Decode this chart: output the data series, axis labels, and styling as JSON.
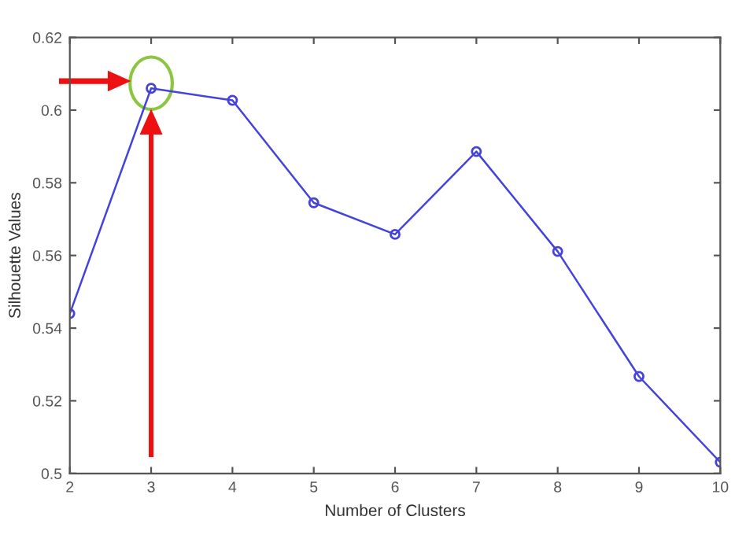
{
  "chart_data": {
    "type": "line",
    "xlabel": "Number of Clusters",
    "ylabel": "Silhouette Values",
    "x": [
      2,
      3,
      4,
      5,
      6,
      7,
      8,
      9,
      10
    ],
    "series": [
      {
        "color": "#4444dd",
        "values": [
          0.544,
          0.606,
          0.6027,
          0.5745,
          0.5658,
          0.5886,
          0.5611,
          0.5267,
          0.5031
        ]
      }
    ],
    "xlim": [
      2,
      10
    ],
    "xticks": [
      2,
      3,
      4,
      5,
      6,
      7,
      8,
      9,
      10
    ],
    "ylim": [
      0.5,
      0.62
    ],
    "yticks": [
      {
        "value": 0.5,
        "label": "0.5"
      },
      0.52,
      0.54,
      0.56,
      0.58,
      {
        "value": 0.6,
        "label": "0.6"
      },
      0.62
    ],
    "marker": "circle",
    "line_style": "solid",
    "grid": false,
    "legend": false
  }
}
